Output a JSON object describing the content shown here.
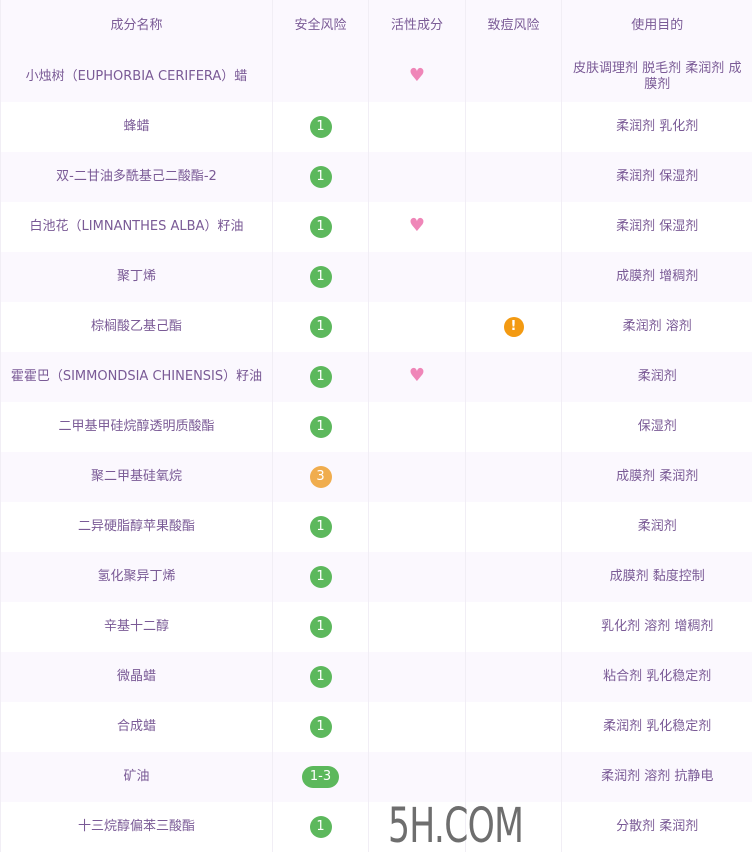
{
  "header": [
    "成分名称",
    "安全风险",
    "活性成分",
    "致痘风险",
    "使用目的"
  ],
  "colors": {
    "green": "#5cb85c",
    "orange": "#f0ad4e",
    "heart": "#ef86b8",
    "warn": "#f39a12"
  },
  "rows": [
    {
      "name": "小烛树（EUPHORBIA CERIFERA）蜡",
      "risk": "",
      "active": true,
      "acne": false,
      "purpose": "皮肤调理剂 脱毛剂 柔润剂 成膜剂"
    },
    {
      "name": "蜂蜡",
      "risk": "1",
      "active": false,
      "acne": false,
      "purpose": "柔润剂 乳化剂"
    },
    {
      "name": "双-二甘油多酰基己二酸酯-2",
      "risk": "1",
      "active": false,
      "acne": false,
      "purpose": "柔润剂 保湿剂"
    },
    {
      "name": "白池花（LIMNANTHES ALBA）籽油",
      "risk": "1",
      "active": true,
      "acne": false,
      "purpose": "柔润剂 保湿剂"
    },
    {
      "name": "聚丁烯",
      "risk": "1",
      "active": false,
      "acne": false,
      "purpose": "成膜剂 增稠剂"
    },
    {
      "name": "棕榈酸乙基己酯",
      "risk": "1",
      "active": false,
      "acne": true,
      "purpose": "柔润剂 溶剂"
    },
    {
      "name": "霍霍巴（SIMMONDSIA CHINENSIS）籽油",
      "risk": "1",
      "active": true,
      "acne": false,
      "purpose": "柔润剂"
    },
    {
      "name": "二甲基甲硅烷醇透明质酸酯",
      "risk": "1",
      "active": false,
      "acne": false,
      "purpose": "保湿剂"
    },
    {
      "name": "聚二甲基硅氧烷",
      "risk": "3",
      "active": false,
      "acne": false,
      "purpose": "成膜剂 柔润剂"
    },
    {
      "name": "二异硬脂醇苹果酸酯",
      "risk": "1",
      "active": false,
      "acne": false,
      "purpose": "柔润剂"
    },
    {
      "name": "氢化聚异丁烯",
      "risk": "1",
      "active": false,
      "acne": false,
      "purpose": "成膜剂 黏度控制"
    },
    {
      "name": "辛基十二醇",
      "risk": "1",
      "active": false,
      "acne": false,
      "purpose": "乳化剂 溶剂 增稠剂"
    },
    {
      "name": "微晶蜡",
      "risk": "1",
      "active": false,
      "acne": false,
      "purpose": "粘合剂 乳化稳定剂"
    },
    {
      "name": "合成蜡",
      "risk": "1",
      "active": false,
      "acne": false,
      "purpose": "柔润剂 乳化稳定剂"
    },
    {
      "name": "矿油",
      "risk": "1-3",
      "active": false,
      "acne": false,
      "purpose": "柔润剂 溶剂 抗静电"
    },
    {
      "name": "十三烷醇偏苯三酸酯",
      "risk": "1",
      "active": false,
      "acne": false,
      "purpose": "分散剂 柔润剂"
    }
  ],
  "watermark": "5H.COM"
}
